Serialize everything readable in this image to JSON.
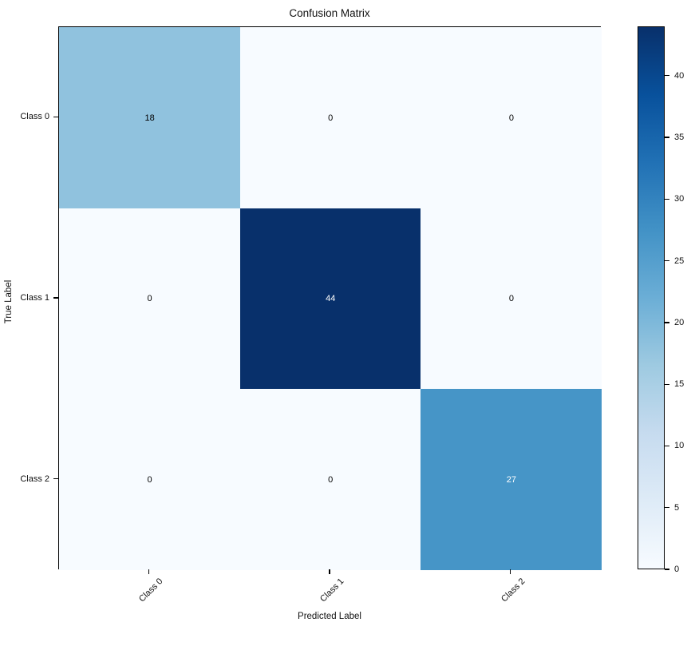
{
  "figure": {
    "background": "#ffffff"
  },
  "chart_data": {
    "type": "heatmap",
    "title": "Confusion Matrix",
    "xlabel": "Predicted Label",
    "ylabel": "True Label",
    "x_categories": [
      "Class 0",
      "Class 1",
      "Class 2"
    ],
    "y_categories": [
      "Class 0",
      "Class 1",
      "Class 2"
    ],
    "matrix": [
      [
        18,
        0,
        0
      ],
      [
        0,
        44,
        0
      ],
      [
        0,
        0,
        27
      ]
    ],
    "vmin": 0,
    "vmax": 44,
    "colormap": "Blues",
    "colormap_stops": [
      {
        "t": 0.0,
        "c": "#f7fbff"
      },
      {
        "t": 0.125,
        "c": "#deebf7"
      },
      {
        "t": 0.25,
        "c": "#c6dbef"
      },
      {
        "t": 0.375,
        "c": "#9ecae1"
      },
      {
        "t": 0.5,
        "c": "#6baed6"
      },
      {
        "t": 0.625,
        "c": "#4292c6"
      },
      {
        "t": 0.75,
        "c": "#2171b5"
      },
      {
        "t": 0.875,
        "c": "#08519c"
      },
      {
        "t": 1.0,
        "c": "#08306b"
      }
    ],
    "colorbar_ticks": [
      0,
      5,
      10,
      15,
      20,
      25,
      30,
      35,
      40
    ],
    "annotation_color_light_cell": "#000000",
    "annotation_color_dark_cell": "#ffffff",
    "axis_color": "#000000",
    "grid": false,
    "legend_position": "right-colorbar"
  }
}
